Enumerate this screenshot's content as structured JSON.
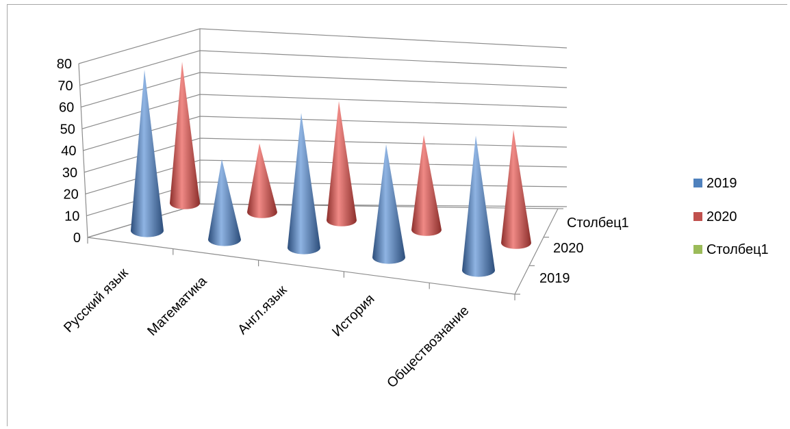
{
  "chart_data": {
    "type": "bar",
    "subtype": "3d-cone",
    "categories": [
      "Русский язык",
      "Математика",
      "Англ.язык",
      "История",
      "Обществознание"
    ],
    "series": [
      {
        "name": "2019",
        "values": [
          74,
          37,
          62,
          52,
          62
        ],
        "color": "#4f81bd"
      },
      {
        "name": "2020",
        "values": [
          70,
          34,
          59,
          47,
          56
        ],
        "color": "#c0504d"
      },
      {
        "name": "Столбец1",
        "values": [
          0,
          0,
          0,
          0,
          0
        ],
        "color": "#9bbb59"
      }
    ],
    "depth_labels": [
      "Столбец1",
      "2020",
      "2019"
    ],
    "yticks": [
      "0",
      "10",
      "20",
      "30",
      "40",
      "50",
      "60",
      "70",
      "80"
    ],
    "ylim": [
      0,
      80
    ],
    "grid": true,
    "legend_position": "right"
  }
}
